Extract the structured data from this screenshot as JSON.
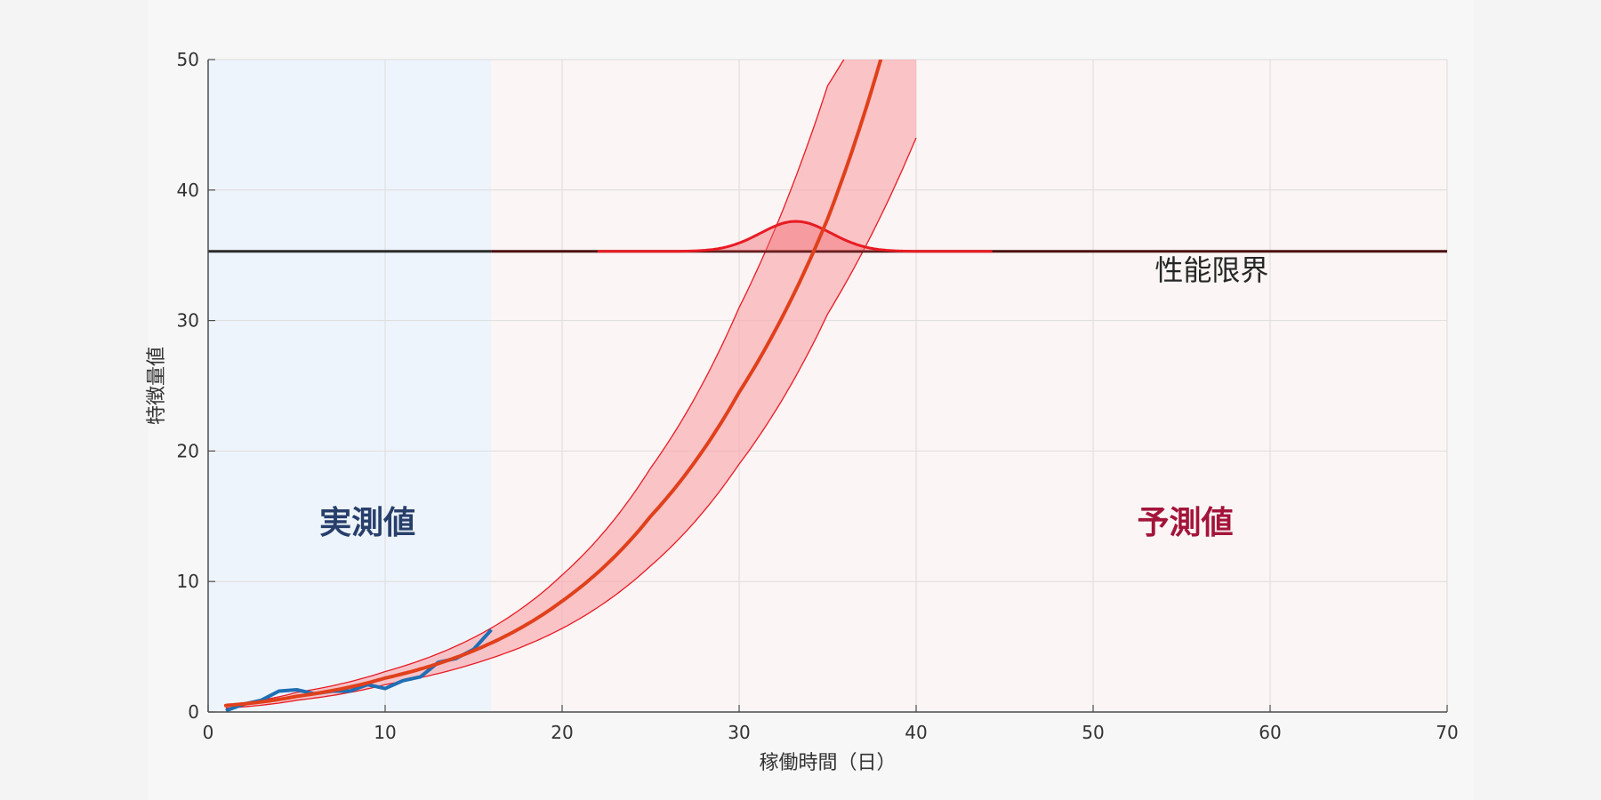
{
  "chart_data": {
    "type": "line",
    "xlabel": "稼働時間（日）",
    "ylabel": "特徴量値",
    "xlim": [
      0,
      70
    ],
    "ylim": [
      0,
      50
    ],
    "xticks": [
      0,
      10,
      20,
      30,
      40,
      50,
      60,
      70
    ],
    "yticks": [
      0,
      10,
      20,
      30,
      40,
      50
    ],
    "grid": true,
    "regions": [
      {
        "label": "実測値",
        "x_start": 0,
        "x_end": 16,
        "fill": "#eef4fc",
        "label_color": "#283f6b",
        "label_x": 9,
        "label_y": 13.7
      },
      {
        "label": "予測値",
        "x_start": 16,
        "x_end": 70,
        "fill": "#fbf5f5",
        "label_color": "#a3143a",
        "label_x": 55.2,
        "label_y": 13.7
      }
    ],
    "threshold": {
      "label": "性能限界",
      "y": 35.3,
      "color": "#4a0e0e",
      "label_x": 56.7,
      "label_y": 33.1
    },
    "measured": {
      "color": "#1f6fb4",
      "x": [
        1,
        2,
        3,
        4,
        5,
        6,
        7,
        8,
        9,
        10,
        11,
        12,
        13,
        14,
        15,
        16
      ],
      "y": [
        0.1,
        0.6,
        0.9,
        1.6,
        1.7,
        1.4,
        1.6,
        1.6,
        2.1,
        1.8,
        2.4,
        2.7,
        3.8,
        4.1,
        4.8,
        6.3
      ]
    },
    "prediction": {
      "color": "#e0401b",
      "x": [
        1,
        5,
        10,
        15,
        20,
        25,
        30,
        35,
        38
      ],
      "y": [
        0.5,
        1.2,
        2.6,
        4.7,
        8.5,
        15.0,
        24.5,
        37.8,
        50.0
      ]
    },
    "prediction_band": {
      "fill": "#f9a8ac",
      "stroke": "#e81b23",
      "x": [
        1,
        5,
        10,
        15,
        20,
        25,
        30,
        35,
        40
      ],
      "upper": [
        0.55,
        1.5,
        3.1,
        5.7,
        10.5,
        18.7,
        31.0,
        48.0,
        60.0
      ],
      "lower": [
        0.3,
        0.9,
        2.1,
        3.7,
        6.4,
        11.2,
        19.0,
        30.5,
        44.0
      ]
    },
    "failure_distribution": {
      "color": "#e81b23",
      "peak_x": 33.2,
      "peak_y": 37.6,
      "sigma": 2.0,
      "base_y": 35.3
    }
  }
}
